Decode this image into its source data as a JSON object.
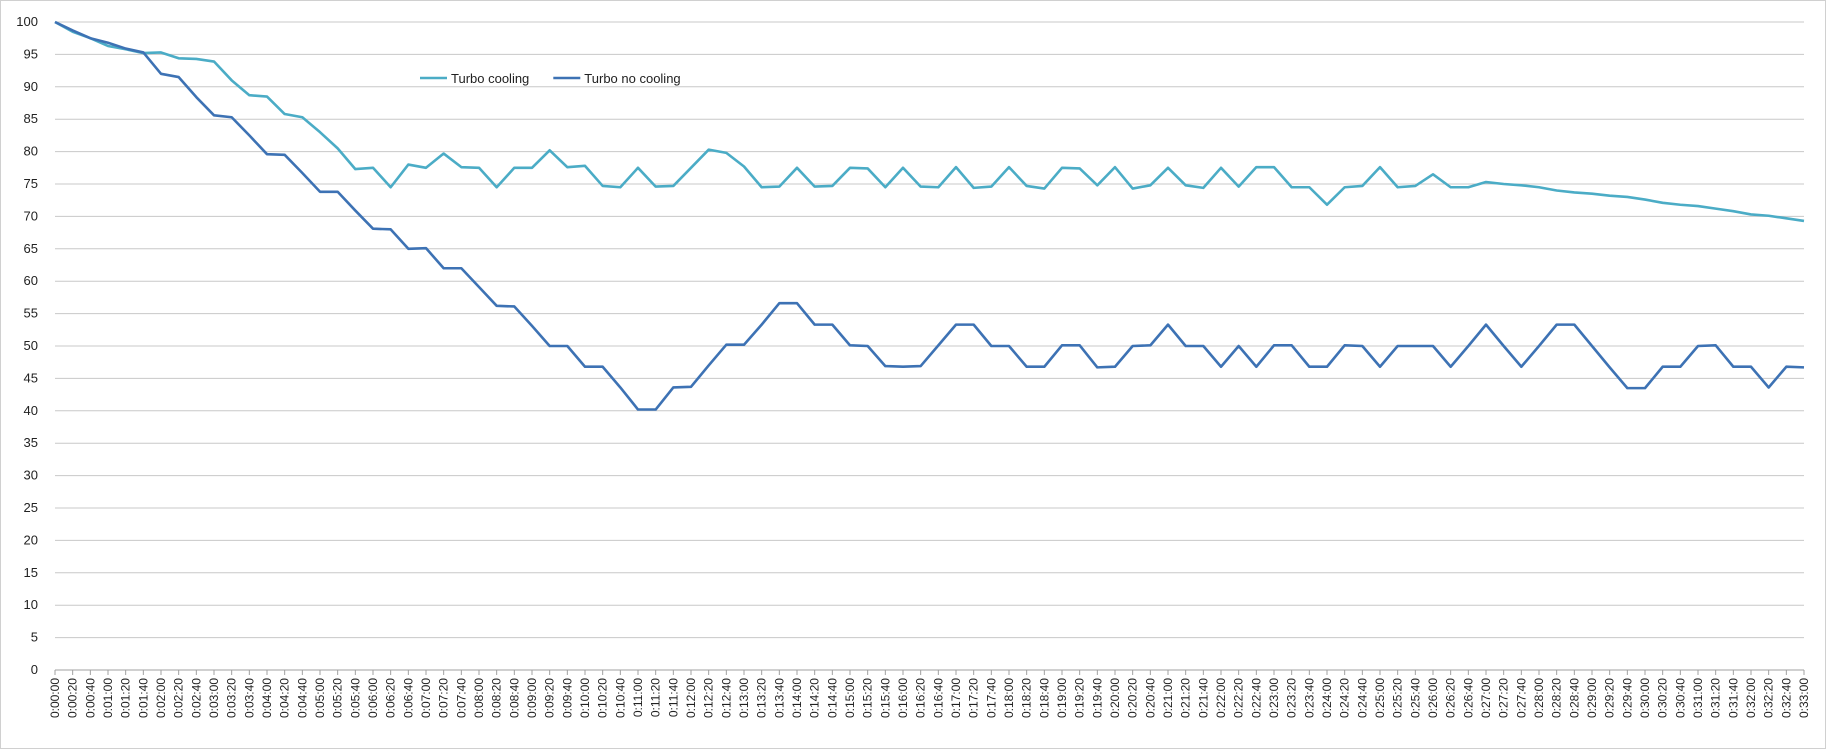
{
  "chart_data": {
    "type": "line",
    "categories": [
      "0:00:00",
      "0:00:20",
      "0:00:40",
      "0:01:00",
      "0:01:20",
      "0:01:40",
      "0:02:00",
      "0:02:20",
      "0:02:40",
      "0:03:00",
      "0:03:20",
      "0:03:40",
      "0:04:00",
      "0:04:20",
      "0:04:40",
      "0:05:00",
      "0:05:20",
      "0:05:40",
      "0:06:00",
      "0:06:20",
      "0:06:40",
      "0:07:00",
      "0:07:20",
      "0:07:40",
      "0:08:00",
      "0:08:20",
      "0:08:40",
      "0:09:00",
      "0:09:20",
      "0:09:40",
      "0:10:00",
      "0:10:20",
      "0:10:40",
      "0:11:00",
      "0:11:20",
      "0:11:40",
      "0:12:00",
      "0:12:20",
      "0:12:40",
      "0:13:00",
      "0:13:20",
      "0:13:40",
      "0:14:00",
      "0:14:20",
      "0:14:40",
      "0:15:00",
      "0:15:20",
      "0:15:40",
      "0:16:00",
      "0:16:20",
      "0:16:40",
      "0:17:00",
      "0:17:20",
      "0:17:40",
      "0:18:00",
      "0:18:20",
      "0:18:40",
      "0:19:00",
      "0:19:20",
      "0:19:40",
      "0:20:00",
      "0:20:20",
      "0:20:40",
      "0:21:00",
      "0:21:20",
      "0:21:40",
      "0:22:00",
      "0:22:20",
      "0:22:40",
      "0:23:00",
      "0:23:20",
      "0:23:40",
      "0:24:00",
      "0:24:20",
      "0:24:40",
      "0:25:00",
      "0:25:20",
      "0:25:40",
      "0:26:00",
      "0:26:20",
      "0:26:40",
      "0:27:00",
      "0:27:20",
      "0:27:40",
      "0:28:00",
      "0:28:20",
      "0:28:40",
      "0:29:00",
      "0:29:20",
      "0:29:40",
      "0:30:00",
      "0:30:20",
      "0:30:40",
      "0:31:00",
      "0:31:20",
      "0:31:40",
      "0:32:00",
      "0:32:20",
      "0:32:40",
      "0:33:00"
    ],
    "series": [
      {
        "name": "Turbo cooling",
        "color": "#4bacc6",
        "values": [
          100,
          98.5,
          97.5,
          96.3,
          95.8,
          95.2,
          95.3,
          94.4,
          94.3,
          93.9,
          91,
          88.7,
          88.5,
          85.8,
          85.3,
          83,
          80.5,
          77.3,
          77.5,
          74.5,
          78,
          77.5,
          79.7,
          77.6,
          77.5,
          74.5,
          77.5,
          77.5,
          80.2,
          77.6,
          77.8,
          74.7,
          74.5,
          77.5,
          74.6,
          74.7,
          77.5,
          80.3,
          79.8,
          77.7,
          74.5,
          74.6,
          77.5,
          74.6,
          74.7,
          77.5,
          77.4,
          74.5,
          77.5,
          74.6,
          74.5,
          77.6,
          74.4,
          74.6,
          77.6,
          74.7,
          74.3,
          77.5,
          77.4,
          74.8,
          77.6,
          74.3,
          74.8,
          77.5,
          74.8,
          74.4,
          77.5,
          74.6,
          77.6,
          77.6,
          74.5,
          74.5,
          71.8,
          74.5,
          74.7,
          77.6,
          74.5,
          74.7,
          76.5,
          74.5,
          74.5,
          75.3,
          75,
          74.8,
          74.5,
          74,
          73.7,
          73.5,
          73.2,
          73,
          72.6,
          72.1,
          71.8,
          71.6,
          71.2,
          70.8,
          70.3,
          70.1,
          69.7,
          69.3
        ]
      },
      {
        "name": "Turbo no cooling",
        "color": "#3d72b4",
        "values": [
          100,
          98.7,
          97.5,
          96.8,
          95.9,
          95.3,
          92,
          91.5,
          88.4,
          85.6,
          85.3,
          82.5,
          79.6,
          79.5,
          76.7,
          73.8,
          73.8,
          70.9,
          68.1,
          68,
          65,
          65.1,
          62,
          62,
          59.1,
          56.2,
          56.1,
          53.1,
          50,
          50,
          46.8,
          46.8,
          43.6,
          40.2,
          40.2,
          43.6,
          43.7,
          47,
          50.2,
          50.2,
          53.3,
          56.6,
          56.6,
          53.3,
          53.3,
          50.1,
          50,
          46.9,
          46.8,
          46.9,
          50.1,
          53.3,
          53.3,
          50,
          50,
          46.8,
          46.8,
          50.1,
          50.1,
          46.7,
          46.8,
          50,
          50.1,
          53.3,
          50,
          50,
          46.8,
          50,
          46.8,
          50.1,
          50.1,
          46.8,
          46.8,
          50.1,
          50,
          46.8,
          50,
          50,
          50,
          46.8,
          50,
          53.3,
          50,
          46.8,
          50,
          53.3,
          53.3,
          50,
          46.7,
          43.5,
          43.5,
          46.8,
          46.8,
          50,
          50.1,
          46.8,
          46.8,
          43.6,
          46.8,
          46.7
        ]
      }
    ],
    "ylim": [
      0,
      100
    ],
    "yticks": [
      0,
      5,
      10,
      15,
      20,
      25,
      30,
      35,
      40,
      45,
      50,
      55,
      60,
      65,
      70,
      75,
      80,
      85,
      90,
      95,
      100
    ],
    "grid": true,
    "legend": "top"
  }
}
